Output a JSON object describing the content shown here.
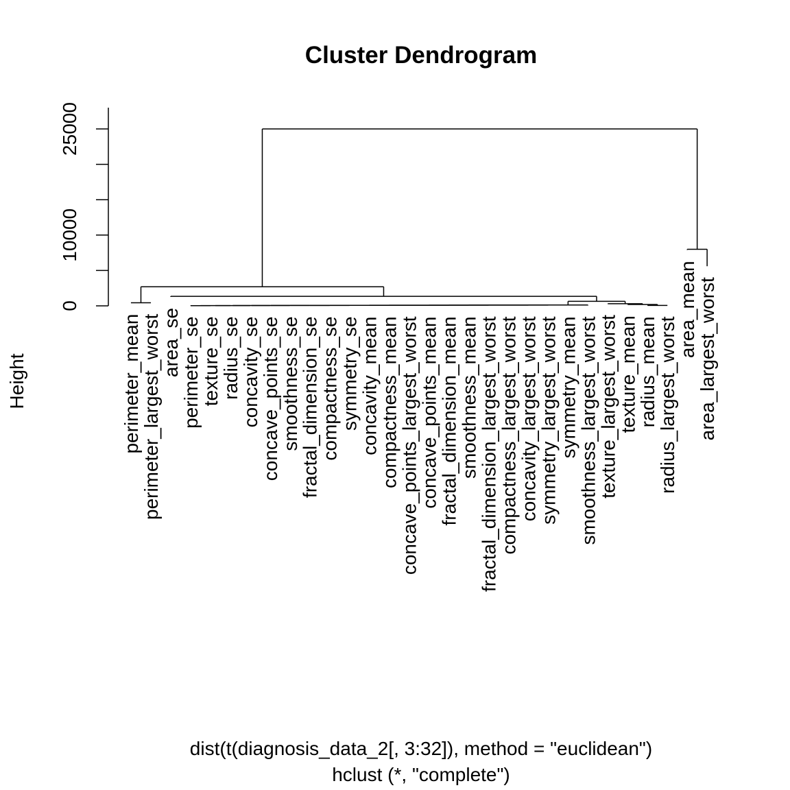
{
  "chart_data": {
    "type": "dendrogram",
    "title": "Cluster Dendrogram",
    "ylabel": "Height",
    "xlabel": "dist(t(diagnosis_data_2[, 3:32]), method = \"euclidean\")",
    "sublabel": "hclust (*, \"complete\")",
    "ylim": [
      0,
      27000
    ],
    "y_ticks": [
      0,
      5000,
      10000,
      15000,
      20000,
      25000
    ],
    "y_tick_labels": [
      "0",
      "",
      "10000",
      "",
      "",
      "25000"
    ],
    "leaves": [
      {
        "label": "perimeter_mean",
        "hang": 420
      },
      {
        "label": "perimeter_largest_worst",
        "hang": 420
      },
      {
        "label": "area_se",
        "hang": 1270
      },
      {
        "label": "perimeter_se",
        "hang": 50
      },
      {
        "label": "texture_se",
        "hang": 50
      },
      {
        "label": "radius_se",
        "hang": 50
      },
      {
        "label": "concavity_se",
        "hang": 50
      },
      {
        "label": "concave_points_se",
        "hang": 50
      },
      {
        "label": "smoothness_se",
        "hang": 50
      },
      {
        "label": "fractal_dimension_se",
        "hang": 50
      },
      {
        "label": "compactness_se",
        "hang": 50
      },
      {
        "label": "symmetry_se",
        "hang": 50
      },
      {
        "label": "concavity_mean",
        "hang": 50
      },
      {
        "label": "compactness_mean",
        "hang": 50
      },
      {
        "label": "concave_points_largest_worst",
        "hang": 50
      },
      {
        "label": "concave_points_mean",
        "hang": 50
      },
      {
        "label": "fractal_dimension_mean",
        "hang": 50
      },
      {
        "label": "smoothness_mean",
        "hang": 50
      },
      {
        "label": "fractal_dimension_largest_worst",
        "hang": 50
      },
      {
        "label": "compactness_largest_worst",
        "hang": 50
      },
      {
        "label": "concavity_largest_worst",
        "hang": 50
      },
      {
        "label": "symmetry_largest_worst",
        "hang": 50
      },
      {
        "label": "symmetry_mean",
        "hang": 50
      },
      {
        "label": "smoothness_largest_worst",
        "hang": 50
      },
      {
        "label": "texture_largest_worst",
        "hang": 280
      },
      {
        "label": "texture_mean",
        "hang": 180
      },
      {
        "label": "radius_mean",
        "hang": 50
      },
      {
        "label": "radius_largest_worst",
        "hang": 50
      },
      {
        "label": "area_mean",
        "hang": 7900
      },
      {
        "label": "area_largest_worst",
        "hang": 5600
      }
    ],
    "merges": [
      {
        "a": -4,
        "b": -5,
        "height": 30
      },
      {
        "a": 1,
        "b": -6,
        "height": 35
      },
      {
        "a": 2,
        "b": -7,
        "height": 40
      },
      {
        "a": 3,
        "b": -8,
        "height": 45
      },
      {
        "a": 4,
        "b": -9,
        "height": 50
      },
      {
        "a": 5,
        "b": -10,
        "height": 55
      },
      {
        "a": 6,
        "b": -11,
        "height": 60
      },
      {
        "a": 7,
        "b": -12,
        "height": 65
      },
      {
        "a": 8,
        "b": -13,
        "height": 70
      },
      {
        "a": 9,
        "b": -14,
        "height": 75
      },
      {
        "a": 10,
        "b": -15,
        "height": 80
      },
      {
        "a": 11,
        "b": -16,
        "height": 85
      },
      {
        "a": 12,
        "b": -17,
        "height": 90
      },
      {
        "a": 13,
        "b": -18,
        "height": 95
      },
      {
        "a": 14,
        "b": -19,
        "height": 100
      },
      {
        "a": 15,
        "b": -20,
        "height": 105
      },
      {
        "a": 16,
        "b": -21,
        "height": 110
      },
      {
        "a": 17,
        "b": -22,
        "height": 115
      },
      {
        "a": 18,
        "b": -23,
        "height": 120
      },
      {
        "a": 19,
        "b": -24,
        "height": 125
      },
      {
        "a": -27,
        "b": -28,
        "height": 60
      },
      {
        "a": -26,
        "b": 21,
        "height": 190
      },
      {
        "a": -25,
        "b": 22,
        "height": 300
      },
      {
        "a": 20,
        "b": 23,
        "height": 640
      },
      {
        "a": -1,
        "b": -2,
        "height": 430
      },
      {
        "a": -3,
        "b": 24,
        "height": 1350
      },
      {
        "a": 25,
        "b": 26,
        "height": 2700
      },
      {
        "a": -29,
        "b": -30,
        "height": 8000
      },
      {
        "a": 27,
        "b": 28,
        "height": 25000
      }
    ]
  }
}
